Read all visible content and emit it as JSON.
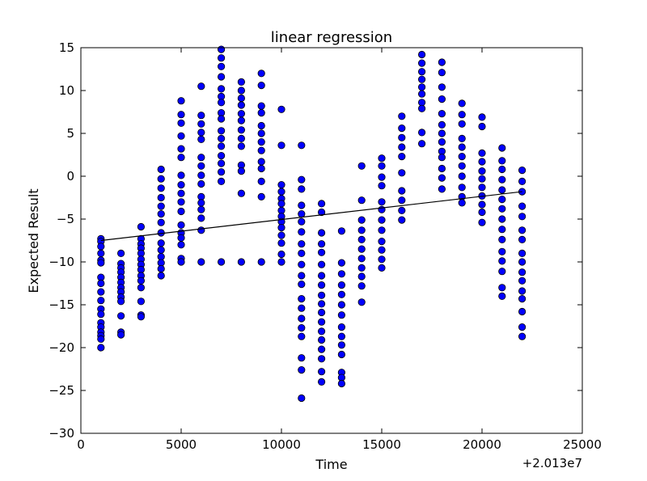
{
  "chart_data": {
    "type": "scatter",
    "title": "linear regression",
    "xlabel": "Time",
    "ylabel": "Expected Result",
    "x_offset_label": "+2.013e7",
    "xlim": [
      0,
      25000
    ],
    "ylim": [
      -30,
      15
    ],
    "x_ticks": [
      0,
      5000,
      10000,
      15000,
      20000,
      25000
    ],
    "x_tick_labels": [
      "0",
      "5000",
      "10000",
      "15000",
      "20000",
      "25000"
    ],
    "y_ticks": [
      -30,
      -25,
      -20,
      -15,
      -10,
      -5,
      0,
      5,
      10,
      15
    ],
    "y_tick_labels": [
      "−30",
      "−25",
      "−20",
      "−15",
      "−10",
      "−5",
      "0",
      "5",
      "10",
      "15"
    ],
    "grid": false,
    "legend": "none",
    "colors": {
      "points": "#0000ff",
      "point_edge": "#000000",
      "line": "#000000"
    },
    "series": [
      {
        "kind": "scatter",
        "points": [
          [
            1000,
            -7.3
          ],
          [
            1000,
            -7.6
          ],
          [
            1000,
            -8.2
          ],
          [
            1000,
            -9.0
          ],
          [
            1000,
            -9.8
          ],
          [
            1000,
            -10.1
          ],
          [
            1000,
            -11.8
          ],
          [
            1000,
            -12.5
          ],
          [
            1000,
            -13.5
          ],
          [
            1000,
            -14.5
          ],
          [
            1000,
            -15.5
          ],
          [
            1000,
            -16.1
          ],
          [
            1000,
            -17.1
          ],
          [
            1000,
            -17.6
          ],
          [
            1000,
            -18.2
          ],
          [
            1000,
            -18.6
          ],
          [
            1000,
            -19.0
          ],
          [
            1000,
            -20.0
          ],
          [
            2000,
            -9.0
          ],
          [
            2000,
            -10.2
          ],
          [
            2000,
            -10.7
          ],
          [
            2000,
            -11.2
          ],
          [
            2000,
            -11.8
          ],
          [
            2000,
            -12.4
          ],
          [
            2000,
            -13.0
          ],
          [
            2000,
            -13.5
          ],
          [
            2000,
            -14.1
          ],
          [
            2000,
            -14.6
          ],
          [
            2000,
            -16.3
          ],
          [
            2000,
            -18.2
          ],
          [
            2000,
            -18.5
          ],
          [
            3000,
            -5.9
          ],
          [
            3000,
            -7.3
          ],
          [
            3000,
            -7.9
          ],
          [
            3000,
            -8.4
          ],
          [
            3000,
            -9.0
          ],
          [
            3000,
            -9.7
          ],
          [
            3000,
            -10.3
          ],
          [
            3000,
            -10.9
          ],
          [
            3000,
            -11.6
          ],
          [
            3000,
            -12.2
          ],
          [
            3000,
            -13.0
          ],
          [
            3000,
            -14.6
          ],
          [
            3000,
            -16.2
          ],
          [
            3000,
            -16.4
          ],
          [
            4000,
            0.8
          ],
          [
            4000,
            -0.3
          ],
          [
            4000,
            -1.4
          ],
          [
            4000,
            -2.5
          ],
          [
            4000,
            -3.5
          ],
          [
            4000,
            -4.4
          ],
          [
            4000,
            -5.4
          ],
          [
            4000,
            -6.6
          ],
          [
            4000,
            -7.8
          ],
          [
            4000,
            -8.6
          ],
          [
            4000,
            -9.4
          ],
          [
            4000,
            -10.1
          ],
          [
            4000,
            -10.8
          ],
          [
            4000,
            -11.6
          ],
          [
            5000,
            8.8
          ],
          [
            5000,
            7.2
          ],
          [
            5000,
            6.2
          ],
          [
            5000,
            4.7
          ],
          [
            5000,
            3.2
          ],
          [
            5000,
            2.2
          ],
          [
            5000,
            0.1
          ],
          [
            5000,
            -1.0
          ],
          [
            5000,
            -2.0
          ],
          [
            5000,
            -3.0
          ],
          [
            5000,
            -4.1
          ],
          [
            5000,
            -5.7
          ],
          [
            5000,
            -6.6
          ],
          [
            5000,
            -7.2
          ],
          [
            5000,
            -8.0
          ],
          [
            5000,
            -9.6
          ],
          [
            5000,
            -10.0
          ],
          [
            6000,
            10.5
          ],
          [
            6000,
            7.1
          ],
          [
            6000,
            6.1
          ],
          [
            6000,
            5.1
          ],
          [
            6000,
            4.3
          ],
          [
            6000,
            2.2
          ],
          [
            6000,
            1.2
          ],
          [
            6000,
            0.1
          ],
          [
            6000,
            -0.9
          ],
          [
            6000,
            -2.4
          ],
          [
            6000,
            -3.1
          ],
          [
            6000,
            -3.9
          ],
          [
            6000,
            -4.9
          ],
          [
            6000,
            -6.3
          ],
          [
            6000,
            -10.0
          ],
          [
            7000,
            14.8
          ],
          [
            7000,
            13.8
          ],
          [
            7000,
            12.8
          ],
          [
            7000,
            11.6
          ],
          [
            7000,
            10.2
          ],
          [
            7000,
            9.3
          ],
          [
            7000,
            8.6
          ],
          [
            7000,
            7.4
          ],
          [
            7000,
            6.7
          ],
          [
            7000,
            5.3
          ],
          [
            7000,
            4.4
          ],
          [
            7000,
            3.5
          ],
          [
            7000,
            2.4
          ],
          [
            7000,
            1.5
          ],
          [
            7000,
            0.5
          ],
          [
            7000,
            -0.6
          ],
          [
            7000,
            -10.0
          ],
          [
            8000,
            11.0
          ],
          [
            8000,
            10.0
          ],
          [
            8000,
            9.1
          ],
          [
            8000,
            8.3
          ],
          [
            8000,
            7.3
          ],
          [
            8000,
            6.5
          ],
          [
            8000,
            5.4
          ],
          [
            8000,
            4.4
          ],
          [
            8000,
            3.5
          ],
          [
            8000,
            1.3
          ],
          [
            8000,
            0.6
          ],
          [
            8000,
            -2.0
          ],
          [
            8000,
            -10.0
          ],
          [
            9000,
            12.0
          ],
          [
            9000,
            10.6
          ],
          [
            9000,
            8.2
          ],
          [
            9000,
            7.4
          ],
          [
            9000,
            5.9
          ],
          [
            9000,
            5.0
          ],
          [
            9000,
            4.0
          ],
          [
            9000,
            3.0
          ],
          [
            9000,
            1.7
          ],
          [
            9000,
            0.9
          ],
          [
            9000,
            -0.6
          ],
          [
            9000,
            -2.4
          ],
          [
            9000,
            -10.0
          ],
          [
            10000,
            7.8
          ],
          [
            10000,
            3.6
          ],
          [
            10000,
            -1.0
          ],
          [
            10000,
            -1.8
          ],
          [
            10000,
            -2.6
          ],
          [
            10000,
            -3.2
          ],
          [
            10000,
            -4.0
          ],
          [
            10000,
            -4.7
          ],
          [
            10000,
            -5.3
          ],
          [
            10000,
            -6.0
          ],
          [
            10000,
            -6.9
          ],
          [
            10000,
            -7.8
          ],
          [
            10000,
            -9.1
          ],
          [
            10000,
            -10.0
          ],
          [
            11000,
            3.6
          ],
          [
            11000,
            -0.4
          ],
          [
            11000,
            -1.5
          ],
          [
            11000,
            -3.4
          ],
          [
            11000,
            -4.4
          ],
          [
            11000,
            -5.3
          ],
          [
            11000,
            -6.5
          ],
          [
            11000,
            -7.9
          ],
          [
            11000,
            -9.0
          ],
          [
            11000,
            -10.3
          ],
          [
            11000,
            -11.6
          ],
          [
            11000,
            -12.6
          ],
          [
            11000,
            -14.3
          ],
          [
            11000,
            -15.4
          ],
          [
            11000,
            -16.6
          ],
          [
            11000,
            -17.7
          ],
          [
            11000,
            -18.7
          ],
          [
            11000,
            -21.2
          ],
          [
            11000,
            -22.6
          ],
          [
            11000,
            -25.9
          ],
          [
            12000,
            -3.2
          ],
          [
            12000,
            -4.2
          ],
          [
            12000,
            -6.6
          ],
          [
            12000,
            -7.9
          ],
          [
            12000,
            -8.9
          ],
          [
            12000,
            -10.3
          ],
          [
            12000,
            -11.6
          ],
          [
            12000,
            -12.7
          ],
          [
            12000,
            -13.9
          ],
          [
            12000,
            -14.9
          ],
          [
            12000,
            -15.9
          ],
          [
            12000,
            -17.0
          ],
          [
            12000,
            -18.1
          ],
          [
            12000,
            -19.1
          ],
          [
            12000,
            -20.2
          ],
          [
            12000,
            -21.3
          ],
          [
            12000,
            -22.8
          ],
          [
            12000,
            -24.0
          ],
          [
            13000,
            -6.4
          ],
          [
            13000,
            -10.1
          ],
          [
            13000,
            -11.4
          ],
          [
            13000,
            -12.7
          ],
          [
            13000,
            -13.8
          ],
          [
            13000,
            -15.0
          ],
          [
            13000,
            -16.2
          ],
          [
            13000,
            -17.6
          ],
          [
            13000,
            -18.7
          ],
          [
            13000,
            -19.7
          ],
          [
            13000,
            -20.8
          ],
          [
            13000,
            -22.9
          ],
          [
            13000,
            -23.5
          ],
          [
            13000,
            -24.2
          ],
          [
            14000,
            1.2
          ],
          [
            14000,
            -2.8
          ],
          [
            14000,
            -5.1
          ],
          [
            14000,
            -6.3
          ],
          [
            14000,
            -7.4
          ],
          [
            14000,
            -8.5
          ],
          [
            14000,
            -9.6
          ],
          [
            14000,
            -10.7
          ],
          [
            14000,
            -11.7
          ],
          [
            14000,
            -12.8
          ],
          [
            14000,
            -14.7
          ],
          [
            15000,
            2.1
          ],
          [
            15000,
            1.2
          ],
          [
            15000,
            -0.1
          ],
          [
            15000,
            -1.1
          ],
          [
            15000,
            -3.0
          ],
          [
            15000,
            -3.9
          ],
          [
            15000,
            -5.1
          ],
          [
            15000,
            -6.3
          ],
          [
            15000,
            -7.6
          ],
          [
            15000,
            -8.6
          ],
          [
            15000,
            -9.7
          ],
          [
            15000,
            -10.7
          ],
          [
            16000,
            7.0
          ],
          [
            16000,
            5.6
          ],
          [
            16000,
            4.5
          ],
          [
            16000,
            3.4
          ],
          [
            16000,
            2.3
          ],
          [
            16000,
            0.4
          ],
          [
            16000,
            -1.7
          ],
          [
            16000,
            -2.8
          ],
          [
            16000,
            -4.0
          ],
          [
            16000,
            -5.1
          ],
          [
            17000,
            14.2
          ],
          [
            17000,
            13.2
          ],
          [
            17000,
            12.2
          ],
          [
            17000,
            11.3
          ],
          [
            17000,
            10.4
          ],
          [
            17000,
            9.6
          ],
          [
            17000,
            8.6
          ],
          [
            17000,
            7.9
          ],
          [
            17000,
            5.1
          ],
          [
            17000,
            3.8
          ],
          [
            18000,
            13.3
          ],
          [
            18000,
            12.1
          ],
          [
            18000,
            10.4
          ],
          [
            18000,
            9.0
          ],
          [
            18000,
            7.3
          ],
          [
            18000,
            6.0
          ],
          [
            18000,
            5.0
          ],
          [
            18000,
            4.0
          ],
          [
            18000,
            2.9
          ],
          [
            18000,
            2.2
          ],
          [
            18000,
            0.9
          ],
          [
            18000,
            -0.2
          ],
          [
            18000,
            -1.5
          ],
          [
            19000,
            8.5
          ],
          [
            19000,
            7.2
          ],
          [
            19000,
            6.1
          ],
          [
            19000,
            4.4
          ],
          [
            19000,
            3.4
          ],
          [
            19000,
            2.3
          ],
          [
            19000,
            1.2
          ],
          [
            19000,
            0.0
          ],
          [
            19000,
            -1.3
          ],
          [
            19000,
            -2.4
          ],
          [
            19000,
            -3.1
          ],
          [
            20000,
            6.9
          ],
          [
            20000,
            5.8
          ],
          [
            20000,
            2.7
          ],
          [
            20000,
            1.7
          ],
          [
            20000,
            0.6
          ],
          [
            20000,
            -0.3
          ],
          [
            20000,
            -1.3
          ],
          [
            20000,
            -2.3
          ],
          [
            20000,
            -3.3
          ],
          [
            20000,
            -4.2
          ],
          [
            20000,
            -5.4
          ],
          [
            21000,
            3.3
          ],
          [
            21000,
            1.8
          ],
          [
            21000,
            0.8
          ],
          [
            21000,
            -0.4
          ],
          [
            21000,
            -1.6
          ],
          [
            21000,
            -2.7
          ],
          [
            21000,
            -3.8
          ],
          [
            21000,
            -5.0
          ],
          [
            21000,
            -6.2
          ],
          [
            21000,
            -7.4
          ],
          [
            21000,
            -8.8
          ],
          [
            21000,
            -9.9
          ],
          [
            21000,
            -11.1
          ],
          [
            21000,
            -13.0
          ],
          [
            21000,
            -14.0
          ],
          [
            22000,
            0.7
          ],
          [
            22000,
            -0.6
          ],
          [
            22000,
            -1.8
          ],
          [
            22000,
            -3.5
          ],
          [
            22000,
            -4.7
          ],
          [
            22000,
            -6.3
          ],
          [
            22000,
            -7.4
          ],
          [
            22000,
            -9.0
          ],
          [
            22000,
            -10.0
          ],
          [
            22000,
            -11.2
          ],
          [
            22000,
            -12.2
          ],
          [
            22000,
            -13.4
          ],
          [
            22000,
            -14.3
          ],
          [
            22000,
            -15.8
          ],
          [
            22000,
            -17.6
          ],
          [
            22000,
            -18.7
          ]
        ]
      },
      {
        "kind": "line",
        "points": [
          [
            1000,
            -7.5
          ],
          [
            22000,
            -1.8
          ]
        ]
      }
    ]
  }
}
